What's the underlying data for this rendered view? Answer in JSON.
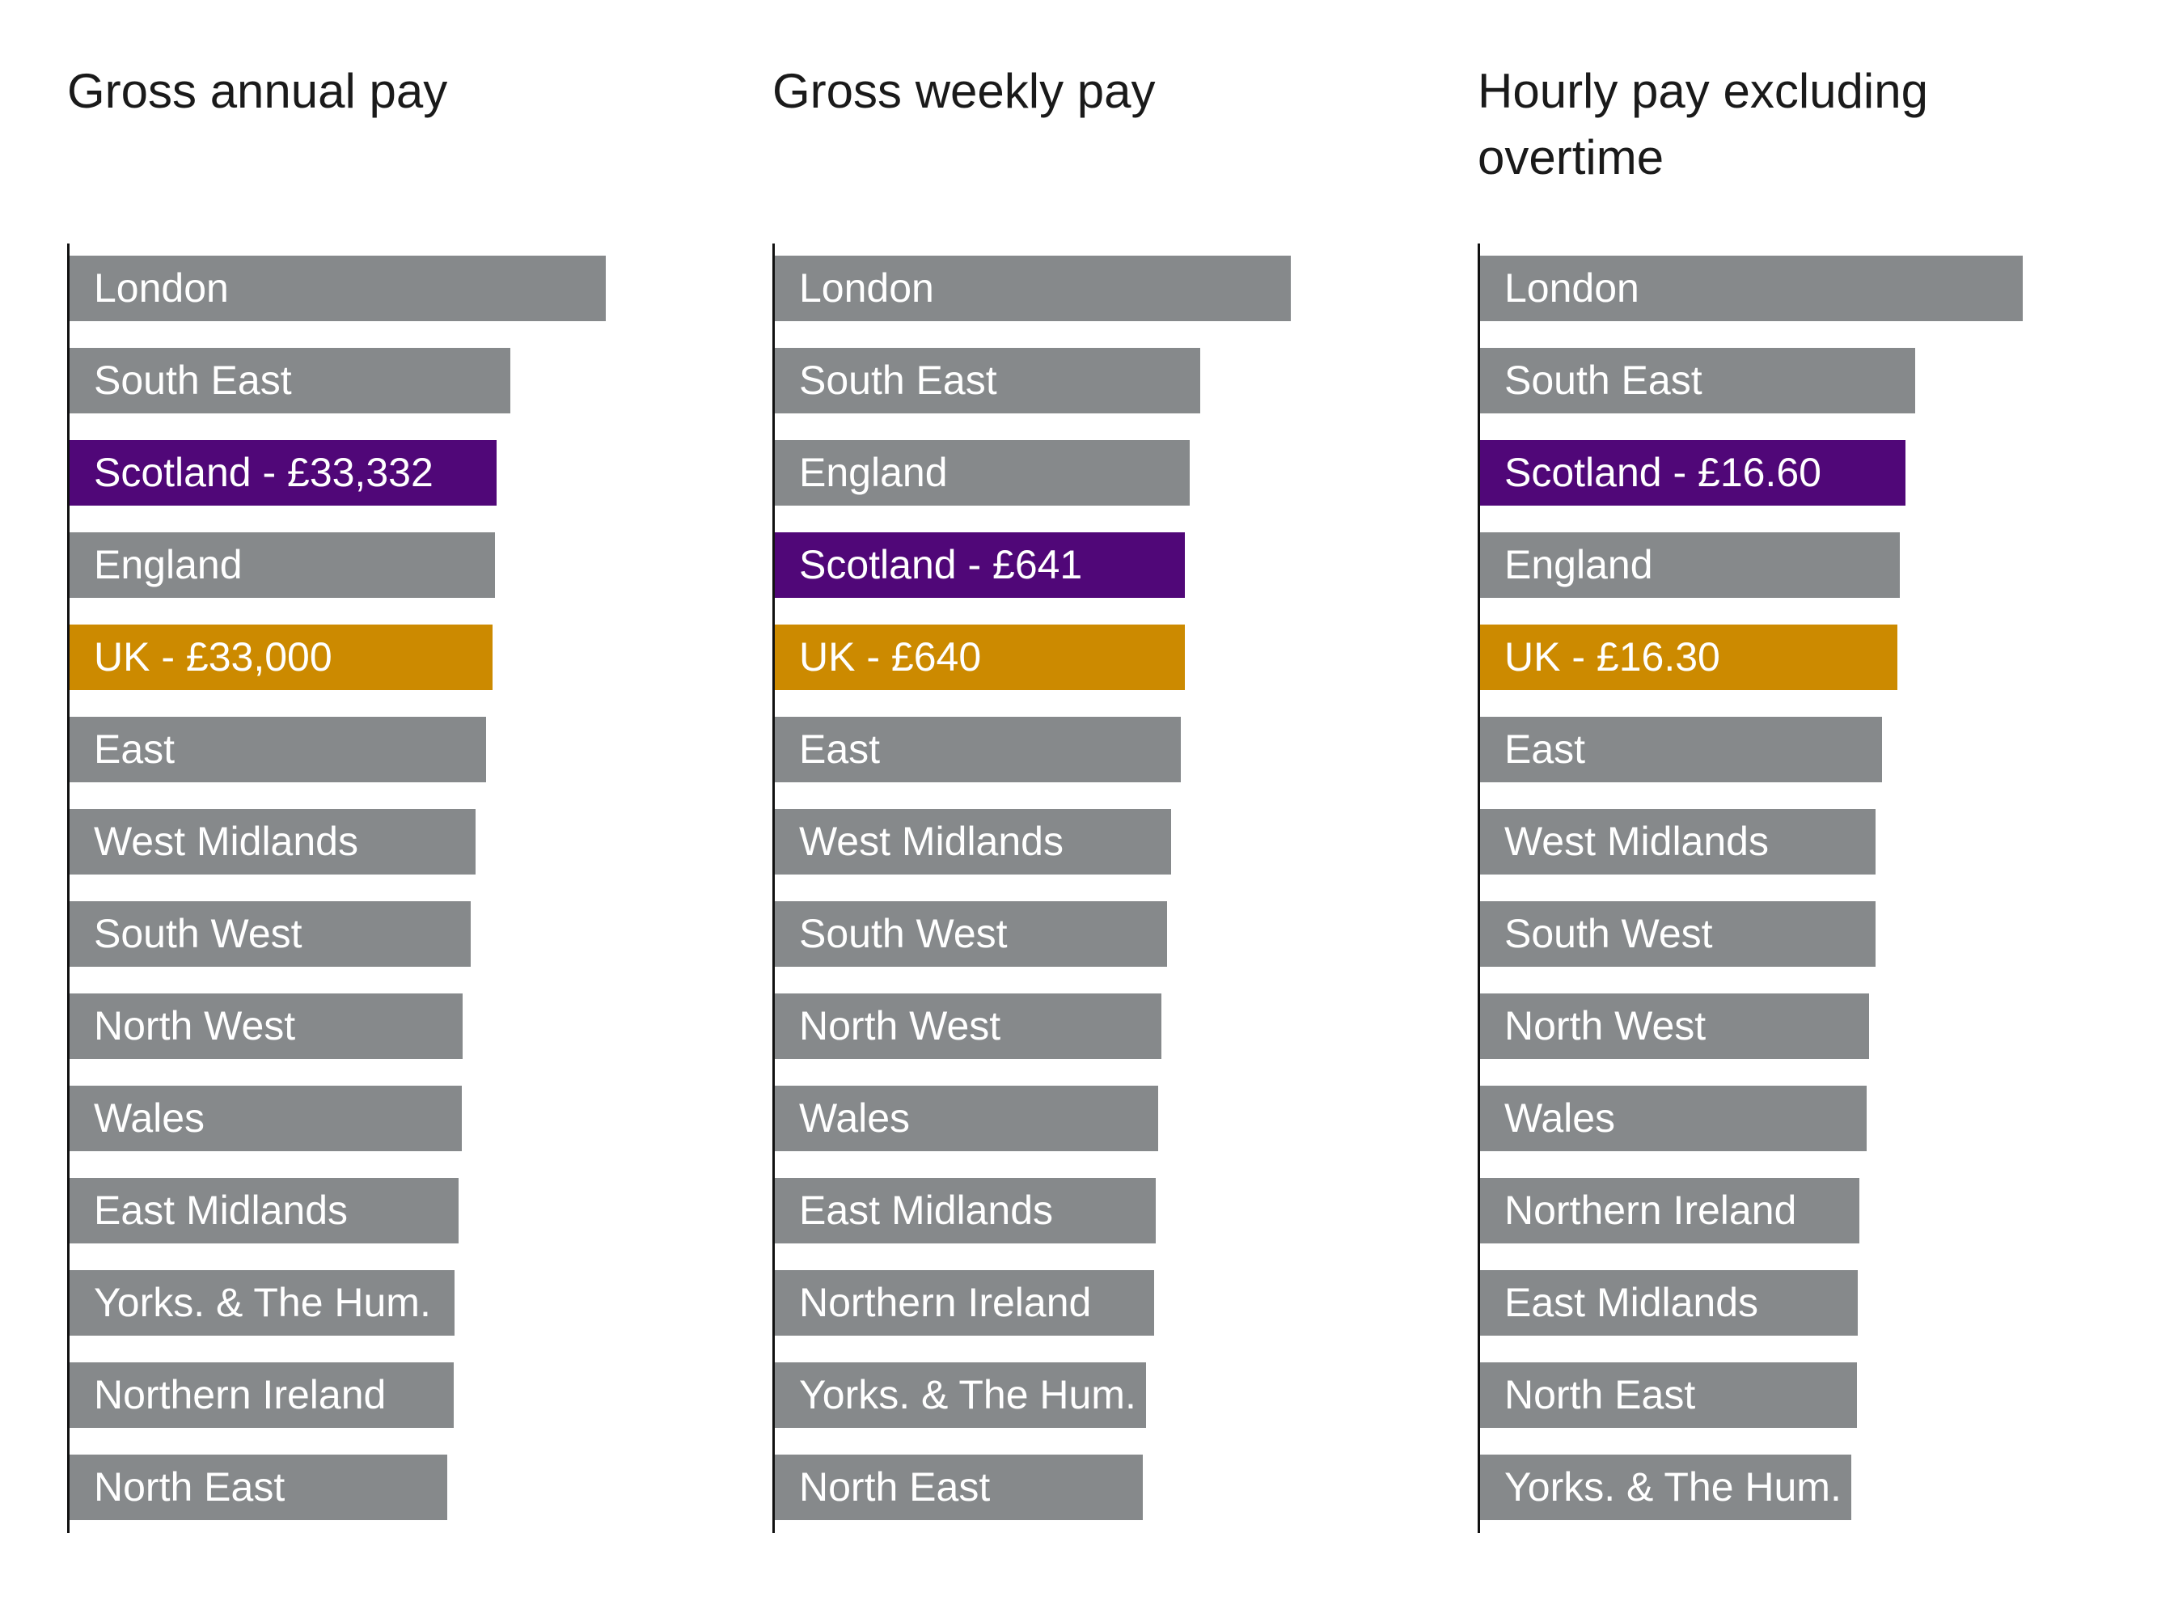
{
  "colors": {
    "default": "#86898b",
    "scotland": "#500778",
    "uk": "#cc8a00"
  },
  "chart_data": [
    {
      "type": "bar",
      "orientation": "horizontal",
      "title": "Gross annual pay",
      "unit": "£",
      "xlim": [
        0,
        48000
      ],
      "categories": [
        "London",
        "South East",
        "Scotland",
        "England",
        "UK",
        "East",
        "West Midlands",
        "South West",
        "North West",
        "Wales",
        "East Midlands",
        "Yorks. & The Hum.",
        "Northern Ireland",
        "North East"
      ],
      "labels": [
        "London",
        "South East",
        "Scotland - £33,332",
        "England",
        "UK - £33,000",
        "East",
        "West Midlands",
        "South West",
        "North West",
        "Wales",
        "East Midlands",
        "Yorks. & The Hum.",
        "Northern Ireland",
        "North East"
      ],
      "values": [
        41900,
        34400,
        33332,
        33200,
        33000,
        32550,
        31700,
        31350,
        30700,
        30600,
        30350,
        30050,
        30000,
        29500
      ],
      "highlight": {
        "Scotland": "scotland",
        "UK": "uk"
      }
    },
    {
      "type": "bar",
      "orientation": "horizontal",
      "title": "Gross weekly pay",
      "unit": "£",
      "xlim": [
        0,
        960
      ],
      "categories": [
        "London",
        "South East",
        "England",
        "Scotland",
        "UK",
        "East",
        "West Midlands",
        "South West",
        "North West",
        "Wales",
        "East Midlands",
        "Northern Ireland",
        "Yorks. & The Hum.",
        "North East"
      ],
      "labels": [
        "London",
        "South East",
        "England",
        "Scotland - £641",
        "UK - £640",
        "East",
        "West Midlands",
        "South West",
        "North West",
        "Wales",
        "East Midlands",
        "Northern Ireland",
        "Yorks. & The Hum.",
        "North East"
      ],
      "values": [
        806,
        665,
        648,
        641,
        640,
        634,
        619,
        612,
        604,
        599,
        595,
        593,
        580,
        575
      ],
      "highlight": {
        "Scotland": "scotland",
        "UK": "uk"
      }
    },
    {
      "type": "bar",
      "orientation": "horizontal",
      "title": "Hourly pay excluding overtime",
      "unit": "£",
      "xlim": [
        0,
        24
      ],
      "categories": [
        "London",
        "South East",
        "Scotland",
        "England",
        "UK",
        "East",
        "West Midlands",
        "South West",
        "North West",
        "Wales",
        "Northern Ireland",
        "East Midlands",
        "North East",
        "Yorks. & The Hum."
      ],
      "labels": [
        "London",
        "South East",
        "Scotland - £16.60",
        "England",
        "UK - £16.30",
        "East",
        "West Midlands",
        "South West",
        "North West",
        "Wales",
        "Northern Ireland",
        "East Midlands",
        "North East",
        "Yorks. & The Hum."
      ],
      "values": [
        21.2,
        17.0,
        16.6,
        16.4,
        16.3,
        15.7,
        15.45,
        15.45,
        15.2,
        15.1,
        14.8,
        14.75,
        14.7,
        14.5
      ],
      "highlight": {
        "Scotland": "scotland",
        "UK": "uk"
      }
    }
  ]
}
